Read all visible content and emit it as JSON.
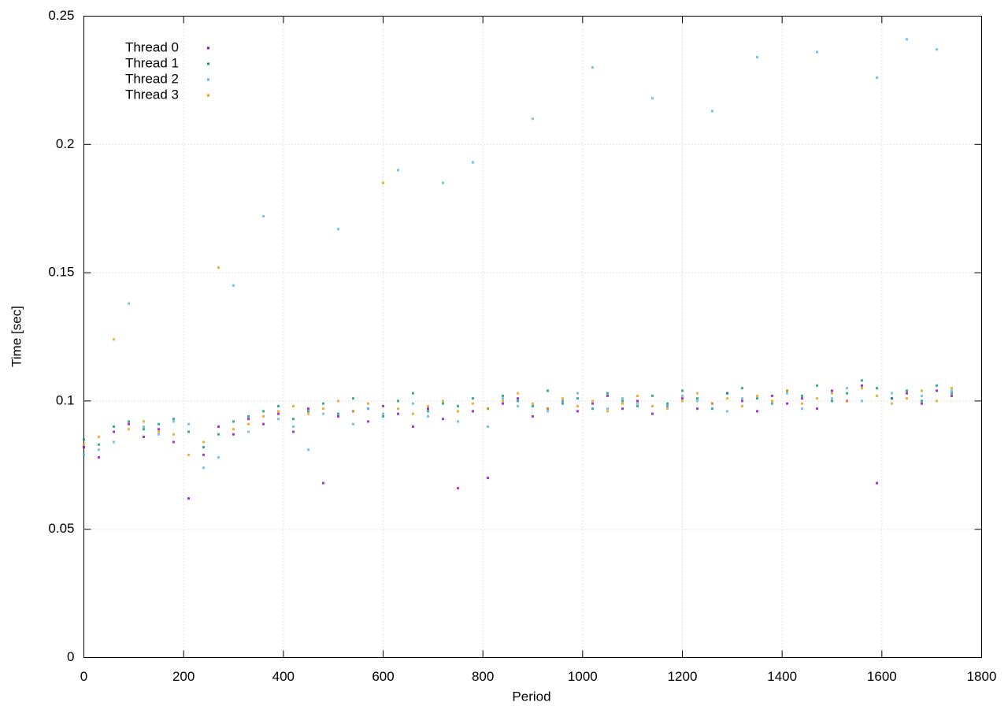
{
  "chart_data": {
    "type": "scatter",
    "xlabel": "Period",
    "ylabel": "Time [sec]",
    "x": [
      0,
      30,
      60,
      90,
      120,
      150,
      180,
      210,
      240,
      270,
      300,
      330,
      360,
      390,
      420,
      450,
      480,
      510,
      540,
      570,
      600,
      630,
      660,
      690,
      720,
      750,
      780,
      810,
      840,
      870,
      900,
      930,
      960,
      990,
      1020,
      1050,
      1080,
      1110,
      1140,
      1170,
      1200,
      1230,
      1260,
      1290,
      1320,
      1350,
      1380,
      1410,
      1440,
      1470,
      1500,
      1530,
      1560,
      1590,
      1620,
      1650,
      1680,
      1710,
      1740
    ],
    "series": [
      {
        "name": "Thread 0",
        "color": "#9400d3",
        "values": [
          0.082,
          0.078,
          0.088,
          0.091,
          0.086,
          0.089,
          0.084,
          0.062,
          0.079,
          0.09,
          0.087,
          0.093,
          0.091,
          0.095,
          0.088,
          0.097,
          0.068,
          0.094,
          0.096,
          0.092,
          0.098,
          0.095,
          0.09,
          0.097,
          0.093,
          0.066,
          0.096,
          0.07,
          0.099,
          0.101,
          0.094,
          0.097,
          0.1,
          0.096,
          0.099,
          0.102,
          0.097,
          0.1,
          0.095,
          0.098,
          0.101,
          0.097,
          0.099,
          0.103,
          0.1,
          0.096,
          0.102,
          0.099,
          0.101,
          0.097,
          0.104,
          0.1,
          0.106,
          0.068,
          0.101,
          0.103,
          0.099,
          0.104,
          0.102
        ]
      },
      {
        "name": "Thread 1",
        "color": "#009e73",
        "values": [
          0.085,
          0.083,
          0.09,
          0.092,
          0.089,
          0.091,
          0.093,
          0.088,
          0.082,
          0.087,
          0.092,
          0.094,
          0.096,
          0.098,
          0.093,
          0.096,
          0.099,
          0.095,
          0.101,
          0.097,
          0.094,
          0.1,
          0.103,
          0.096,
          0.099,
          0.098,
          0.101,
          0.097,
          0.102,
          0.1,
          0.098,
          0.104,
          0.099,
          0.101,
          0.097,
          0.103,
          0.1,
          0.098,
          0.102,
          0.099,
          0.104,
          0.101,
          0.097,
          0.103,
          0.105,
          0.101,
          0.099,
          0.104,
          0.102,
          0.106,
          0.1,
          0.103,
          0.108,
          0.105,
          0.101,
          0.104,
          0.1,
          0.106,
          0.103
        ]
      },
      {
        "name": "Thread 2",
        "color": "#56b4e9",
        "values": [
          0.079,
          0.081,
          0.084,
          0.138,
          0.09,
          0.087,
          0.092,
          0.091,
          0.074,
          0.078,
          0.145,
          0.088,
          0.172,
          0.093,
          0.09,
          0.081,
          0.095,
          0.167,
          0.091,
          0.097,
          0.095,
          0.19,
          0.099,
          0.094,
          0.185,
          0.092,
          0.193,
          0.09,
          0.101,
          0.098,
          0.21,
          0.096,
          0.1,
          0.103,
          0.23,
          0.097,
          0.101,
          0.099,
          0.218,
          0.098,
          0.102,
          0.1,
          0.213,
          0.096,
          0.101,
          0.234,
          0.099,
          0.103,
          0.097,
          0.236,
          0.101,
          0.105,
          0.1,
          0.226,
          0.103,
          0.241,
          0.102,
          0.237,
          0.104
        ]
      },
      {
        "name": "Thread 3",
        "color": "#e69f00",
        "values": [
          0.083,
          0.086,
          0.124,
          0.089,
          0.092,
          0.088,
          0.087,
          0.079,
          0.084,
          0.152,
          0.089,
          0.091,
          0.094,
          0.096,
          0.098,
          0.095,
          0.097,
          0.1,
          0.096,
          0.099,
          0.185,
          0.097,
          0.095,
          0.098,
          0.1,
          0.096,
          0.099,
          0.097,
          0.1,
          0.103,
          0.099,
          0.097,
          0.101,
          0.098,
          0.1,
          0.096,
          0.099,
          0.102,
          0.098,
          0.097,
          0.1,
          0.103,
          0.099,
          0.101,
          0.098,
          0.102,
          0.1,
          0.104,
          0.099,
          0.101,
          0.103,
          0.1,
          0.105,
          0.102,
          0.099,
          0.101,
          0.104,
          0.1,
          0.105
        ]
      }
    ],
    "xlim": [
      0,
      1800
    ],
    "xticks": [
      0,
      200,
      400,
      600,
      800,
      1000,
      1200,
      1400,
      1600,
      1800
    ],
    "ylim": [
      0,
      0.25
    ],
    "yticks": [
      0,
      0.05,
      0.1,
      0.15,
      0.2,
      0.25
    ],
    "grid": true,
    "legend": "top-left"
  }
}
